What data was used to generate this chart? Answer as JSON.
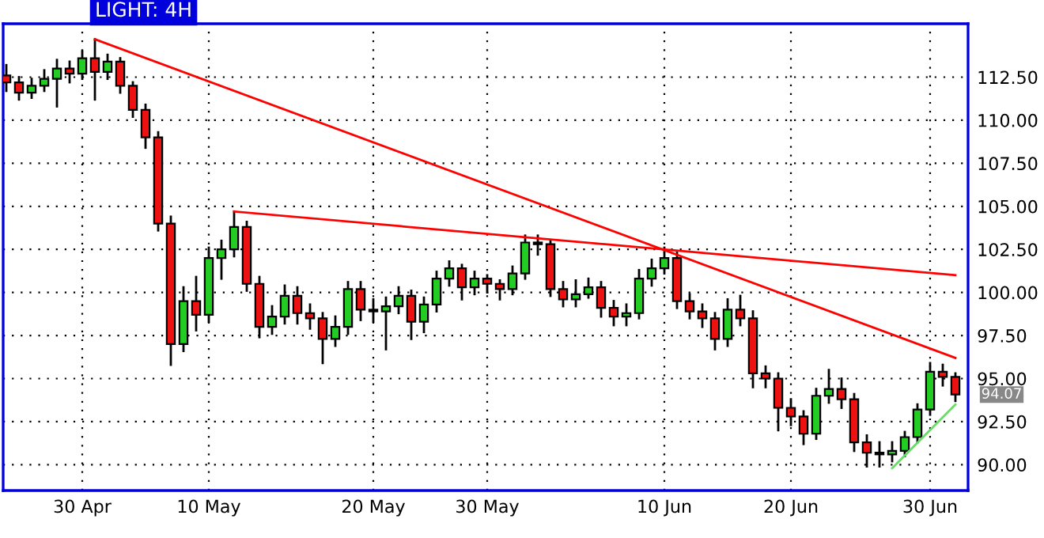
{
  "chart_data": {
    "type": "candlestick",
    "title": "LIGHT: 4H",
    "categories": [
      null,
      null,
      null,
      null,
      null,
      null,
      "30 Apr",
      null,
      null,
      null,
      null,
      null,
      null,
      null,
      null,
      null,
      "10 May",
      null,
      null,
      null,
      null,
      null,
      null,
      null,
      null,
      null,
      null,
      null,
      null,
      "20 May",
      null,
      null,
      null,
      null,
      null,
      null,
      null,
      null,
      "30 May",
      null,
      null,
      null,
      null,
      null,
      null,
      null,
      null,
      null,
      null,
      null,
      null,
      null,
      "10 Jun",
      null,
      null,
      null,
      null,
      null,
      null,
      null,
      null,
      null,
      "20 Jun",
      null,
      null,
      null,
      null,
      null,
      null,
      null,
      null,
      null,
      null,
      "30 Jun",
      null,
      null
    ],
    "ylim": [
      88.5,
      115.6
    ],
    "yticks": [
      {
        "value": 90,
        "label": "90.00"
      },
      {
        "value": 92.5,
        "label": "92.50"
      },
      {
        "value": 95,
        "label": "95.00"
      },
      {
        "value": 97.5,
        "label": "97.50"
      },
      {
        "value": 100,
        "label": "100.00"
      },
      {
        "value": 102.5,
        "label": "102.50"
      },
      {
        "value": 105,
        "label": "105.00"
      },
      {
        "value": 107.5,
        "label": "107.50"
      },
      {
        "value": 110,
        "label": "110.00"
      },
      {
        "value": 112.5,
        "label": "112.50"
      }
    ],
    "grid": true,
    "series": [
      {
        "ohlc": [
          [
            112.6,
            113.2,
            111.7,
            112.2
          ],
          [
            112.2,
            112.5,
            111.2,
            111.6
          ],
          [
            111.6,
            112.4,
            111.3,
            112.0
          ],
          [
            112.0,
            112.9,
            111.7,
            112.4
          ],
          [
            112.4,
            113.5,
            110.8,
            113.0
          ],
          [
            113.0,
            113.4,
            112.2,
            112.7
          ],
          [
            112.7,
            114.0,
            112.4,
            113.6
          ],
          [
            113.6,
            114.7,
            111.2,
            112.8
          ],
          [
            112.8,
            113.8,
            112.4,
            113.4
          ],
          [
            113.4,
            113.6,
            111.6,
            112.0
          ],
          [
            112.0,
            112.2,
            110.2,
            110.6
          ],
          [
            110.6,
            110.9,
            108.4,
            109.0
          ],
          [
            109.0,
            109.3,
            103.6,
            104.0
          ],
          [
            104.0,
            104.4,
            95.8,
            97.0
          ],
          [
            97.0,
            100.3,
            96.6,
            99.5
          ],
          [
            99.5,
            100.9,
            97.8,
            98.7
          ],
          [
            98.7,
            102.6,
            98.3,
            102.0
          ],
          [
            102.0,
            103.0,
            100.8,
            102.5
          ],
          [
            102.5,
            104.7,
            102.1,
            103.8
          ],
          [
            103.8,
            104.1,
            100.1,
            100.5
          ],
          [
            100.5,
            100.9,
            97.4,
            98.0
          ],
          [
            98.0,
            99.2,
            97.6,
            98.6
          ],
          [
            98.6,
            100.4,
            98.2,
            99.8
          ],
          [
            99.8,
            100.3,
            98.2,
            98.8
          ],
          [
            98.8,
            99.3,
            97.9,
            98.5
          ],
          [
            98.5,
            98.8,
            95.9,
            97.3
          ],
          [
            97.3,
            98.6,
            96.9,
            98.0
          ],
          [
            98.0,
            100.6,
            97.6,
            100.2
          ],
          [
            100.2,
            100.6,
            98.4,
            99.0
          ],
          [
            99.0,
            99.6,
            98.3,
            98.9
          ],
          [
            98.9,
            99.7,
            96.7,
            99.2
          ],
          [
            99.2,
            100.3,
            98.8,
            99.8
          ],
          [
            99.8,
            100.1,
            97.3,
            98.3
          ],
          [
            98.3,
            99.7,
            97.7,
            99.3
          ],
          [
            99.3,
            101.2,
            98.9,
            100.8
          ],
          [
            100.8,
            101.8,
            100.4,
            101.4
          ],
          [
            101.4,
            101.6,
            99.6,
            100.3
          ],
          [
            100.3,
            101.2,
            99.9,
            100.8
          ],
          [
            100.8,
            101.0,
            100.0,
            100.5
          ],
          [
            100.5,
            100.7,
            99.6,
            100.2
          ],
          [
            100.2,
            101.5,
            99.9,
            101.1
          ],
          [
            101.1,
            103.3,
            100.8,
            102.9
          ],
          [
            102.9,
            103.3,
            102.2,
            102.8
          ],
          [
            102.8,
            103.0,
            99.8,
            100.2
          ],
          [
            100.2,
            100.6,
            99.2,
            99.6
          ],
          [
            99.6,
            100.7,
            99.2,
            99.9
          ],
          [
            99.9,
            100.8,
            99.7,
            100.3
          ],
          [
            100.3,
            100.6,
            98.6,
            99.1
          ],
          [
            99.1,
            99.5,
            98.1,
            98.6
          ],
          [
            98.6,
            99.3,
            98.1,
            98.8
          ],
          [
            98.8,
            101.3,
            98.5,
            100.8
          ],
          [
            100.8,
            101.9,
            100.4,
            101.4
          ],
          [
            101.4,
            102.6,
            101.1,
            102.0
          ],
          [
            102.0,
            102.3,
            99.1,
            99.5
          ],
          [
            99.5,
            99.9,
            98.5,
            98.9
          ],
          [
            98.9,
            99.3,
            98.0,
            98.5
          ],
          [
            98.5,
            98.8,
            96.7,
            97.3
          ],
          [
            97.3,
            99.6,
            96.9,
            99.0
          ],
          [
            99.0,
            99.8,
            98.1,
            98.5
          ],
          [
            98.5,
            98.9,
            94.5,
            95.3
          ],
          [
            95.3,
            95.7,
            94.5,
            95.0
          ],
          [
            95.0,
            95.3,
            92.0,
            93.3
          ],
          [
            93.3,
            93.8,
            92.3,
            92.8
          ],
          [
            92.8,
            93.1,
            91.2,
            91.8
          ],
          [
            91.8,
            94.4,
            91.5,
            94.0
          ],
          [
            94.0,
            95.5,
            93.6,
            94.4
          ],
          [
            94.4,
            95.0,
            93.3,
            93.8
          ],
          [
            93.8,
            94.1,
            90.8,
            91.3
          ],
          [
            91.3,
            91.7,
            89.9,
            90.7
          ],
          [
            90.7,
            91.3,
            89.9,
            90.6
          ],
          [
            90.6,
            91.3,
            90.2,
            90.8
          ],
          [
            90.8,
            91.9,
            90.5,
            91.6
          ],
          [
            91.6,
            93.5,
            91.3,
            93.2
          ],
          [
            93.2,
            95.9,
            92.9,
            95.4
          ],
          [
            95.4,
            95.8,
            94.6,
            95.1
          ],
          [
            95.1,
            95.3,
            93.7,
            94.07
          ]
        ],
        "colors": [
          "#ee1111",
          "#ee1111",
          "#22cc22",
          "#22cc22",
          "#22cc22",
          "#ee1111",
          "#22cc22",
          "#ee1111",
          "#22cc22",
          "#ee1111",
          "#ee1111",
          "#ee1111",
          "#ee1111",
          "#ee1111",
          "#22cc22",
          "#ee1111",
          "#22cc22",
          "#22cc22",
          "#22cc22",
          "#ee1111",
          "#ee1111",
          "#22cc22",
          "#22cc22",
          "#ee1111",
          "#ee1111",
          "#ee1111",
          "#22cc22",
          "#22cc22",
          "#ee1111",
          "#ee1111",
          "#22cc22",
          "#22cc22",
          "#ee1111",
          "#22cc22",
          "#22cc22",
          "#22cc22",
          "#ee1111",
          "#22cc22",
          "#ee1111",
          "#ee1111",
          "#22cc22",
          "#22cc22",
          "#ee1111",
          "#ee1111",
          "#ee1111",
          "#22cc22",
          "#22cc22",
          "#ee1111",
          "#ee1111",
          "#22cc22",
          "#22cc22",
          "#22cc22",
          "#22cc22",
          "#ee1111",
          "#ee1111",
          "#ee1111",
          "#ee1111",
          "#22cc22",
          "#ee1111",
          "#ee1111",
          "#ee1111",
          "#ee1111",
          "#ee1111",
          "#ee1111",
          "#22cc22",
          "#22cc22",
          "#ee1111",
          "#ee1111",
          "#ee1111",
          "#ee1111",
          "#22cc22",
          "#22cc22",
          "#22cc22",
          "#22cc22",
          "#ee1111",
          "#ee1111"
        ]
      },
      {
        "type": "line",
        "color": "#ff0000",
        "values": [
          null,
          null,
          null,
          null,
          null,
          null,
          null,
          114.7,
          null,
          null,
          null,
          null,
          null,
          null,
          null,
          null,
          null,
          null,
          null,
          null,
          null,
          null,
          null,
          null,
          null,
          null,
          null,
          null,
          null,
          null,
          null,
          null,
          null,
          null,
          null,
          null,
          null,
          null,
          null,
          null,
          null,
          null,
          null,
          null,
          null,
          null,
          null,
          null,
          null,
          null,
          null,
          null,
          null,
          null,
          null,
          null,
          null,
          null,
          null,
          null,
          null,
          null,
          null,
          null,
          null,
          null,
          null,
          null,
          null,
          null,
          null,
          null,
          null,
          null,
          null,
          96.2
        ]
      },
      {
        "type": "line",
        "color": "#ff0000",
        "values": [
          null,
          null,
          null,
          null,
          null,
          null,
          null,
          null,
          null,
          null,
          null,
          null,
          null,
          null,
          null,
          null,
          null,
          null,
          104.7,
          null,
          null,
          null,
          null,
          null,
          null,
          null,
          null,
          null,
          null,
          null,
          null,
          null,
          null,
          null,
          null,
          null,
          null,
          null,
          null,
          null,
          null,
          null,
          null,
          null,
          null,
          null,
          null,
          null,
          null,
          null,
          null,
          null,
          null,
          null,
          null,
          null,
          null,
          null,
          null,
          null,
          null,
          null,
          null,
          null,
          null,
          null,
          null,
          null,
          null,
          null,
          null,
          null,
          null,
          null,
          null,
          101.0
        ]
      },
      {
        "type": "line",
        "color": "#66dd66",
        "values": [
          null,
          null,
          null,
          null,
          null,
          null,
          null,
          null,
          null,
          null,
          null,
          null,
          null,
          null,
          null,
          null,
          null,
          null,
          null,
          null,
          null,
          null,
          null,
          null,
          null,
          null,
          null,
          null,
          null,
          null,
          null,
          null,
          null,
          null,
          null,
          null,
          null,
          null,
          null,
          null,
          null,
          null,
          null,
          null,
          null,
          null,
          null,
          null,
          null,
          null,
          null,
          null,
          null,
          null,
          null,
          null,
          null,
          null,
          null,
          null,
          null,
          null,
          null,
          null,
          null,
          null,
          null,
          null,
          null,
          null,
          89.8,
          null,
          null,
          null,
          null,
          93.5
        ]
      }
    ],
    "annotations": [
      "94.07"
    ]
  }
}
